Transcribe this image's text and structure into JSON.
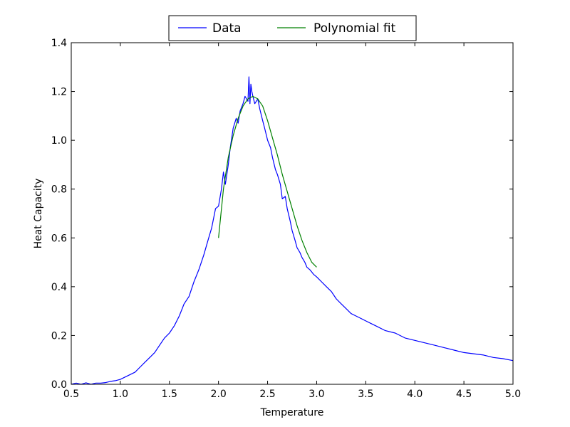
{
  "chart_data": {
    "type": "line",
    "title": "",
    "xlabel": "Temperature",
    "ylabel": "Heat Capacity",
    "xlim": [
      0.5,
      5.0
    ],
    "ylim": [
      0.0,
      1.4
    ],
    "xticks": [
      "0.5",
      "1.0",
      "1.5",
      "2.0",
      "2.5",
      "3.0",
      "3.5",
      "4.0",
      "4.5",
      "5.0"
    ],
    "yticks": [
      "0.0",
      "0.2",
      "0.4",
      "0.6",
      "0.8",
      "1.0",
      "1.2",
      "1.4"
    ],
    "grid": false,
    "legend_position": "top-center",
    "series": [
      {
        "name": "Data",
        "color": "#0000ff",
        "x": [
          0.5,
          0.55,
          0.6,
          0.65,
          0.7,
          0.75,
          0.8,
          0.85,
          0.9,
          0.95,
          1.0,
          1.05,
          1.1,
          1.15,
          1.2,
          1.25,
          1.3,
          1.35,
          1.4,
          1.45,
          1.5,
          1.55,
          1.6,
          1.65,
          1.7,
          1.75,
          1.8,
          1.85,
          1.9,
          1.93,
          1.97,
          2.0,
          2.03,
          2.05,
          2.07,
          2.1,
          2.12,
          2.15,
          2.18,
          2.2,
          2.22,
          2.25,
          2.27,
          2.3,
          2.31,
          2.32,
          2.33,
          2.34,
          2.35,
          2.37,
          2.4,
          2.42,
          2.45,
          2.47,
          2.5,
          2.53,
          2.55,
          2.58,
          2.6,
          2.63,
          2.65,
          2.68,
          2.7,
          2.73,
          2.75,
          2.78,
          2.8,
          2.83,
          2.85,
          2.88,
          2.9,
          2.93,
          2.95,
          2.97,
          3.0,
          3.05,
          3.1,
          3.15,
          3.2,
          3.25,
          3.3,
          3.35,
          3.4,
          3.45,
          3.5,
          3.55,
          3.6,
          3.7,
          3.8,
          3.9,
          4.0,
          4.1,
          4.2,
          4.3,
          4.4,
          4.5,
          4.6,
          4.7,
          4.8,
          4.9,
          5.0
        ],
        "y": [
          0.0,
          0.005,
          0.0,
          0.006,
          0.0,
          0.005,
          0.005,
          0.007,
          0.012,
          0.015,
          0.02,
          0.03,
          0.04,
          0.05,
          0.07,
          0.09,
          0.11,
          0.13,
          0.16,
          0.19,
          0.21,
          0.24,
          0.28,
          0.33,
          0.36,
          0.42,
          0.47,
          0.53,
          0.6,
          0.64,
          0.72,
          0.73,
          0.8,
          0.87,
          0.82,
          0.9,
          0.97,
          1.05,
          1.09,
          1.07,
          1.12,
          1.15,
          1.18,
          1.16,
          1.26,
          1.15,
          1.23,
          1.2,
          1.18,
          1.15,
          1.17,
          1.13,
          1.08,
          1.05,
          1.0,
          0.97,
          0.93,
          0.88,
          0.86,
          0.82,
          0.76,
          0.77,
          0.72,
          0.67,
          0.63,
          0.59,
          0.56,
          0.54,
          0.52,
          0.5,
          0.48,
          0.47,
          0.46,
          0.45,
          0.44,
          0.42,
          0.4,
          0.38,
          0.35,
          0.33,
          0.31,
          0.29,
          0.28,
          0.27,
          0.26,
          0.25,
          0.24,
          0.22,
          0.21,
          0.19,
          0.18,
          0.17,
          0.16,
          0.15,
          0.14,
          0.13,
          0.125,
          0.12,
          0.11,
          0.105,
          0.097
        ]
      },
      {
        "name": "Polynomial fit",
        "color": "#008000",
        "x": [
          2.0,
          2.05,
          2.1,
          2.15,
          2.2,
          2.25,
          2.3,
          2.35,
          2.4,
          2.45,
          2.5,
          2.55,
          2.6,
          2.65,
          2.7,
          2.75,
          2.8,
          2.85,
          2.9,
          2.95,
          3.0
        ],
        "y": [
          0.6,
          0.8,
          0.93,
          1.02,
          1.09,
          1.14,
          1.17,
          1.18,
          1.17,
          1.14,
          1.08,
          1.01,
          0.94,
          0.86,
          0.79,
          0.72,
          0.65,
          0.59,
          0.54,
          0.5,
          0.48
        ]
      }
    ]
  }
}
